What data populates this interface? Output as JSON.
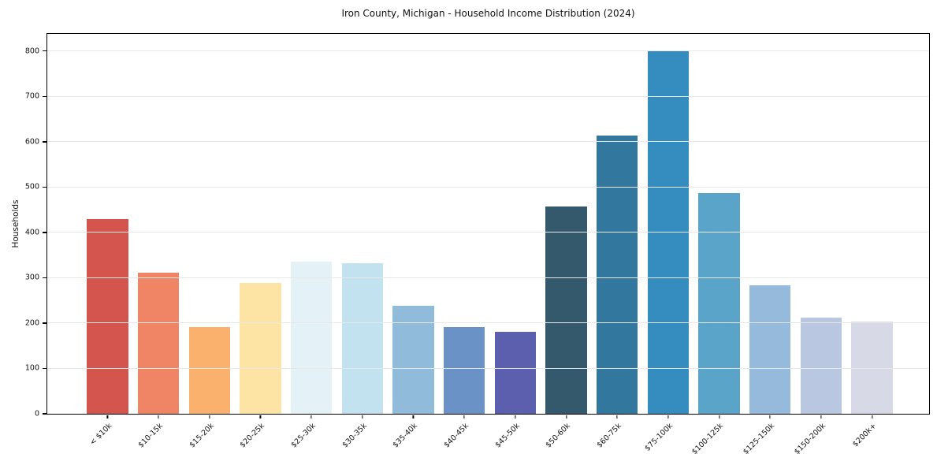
{
  "chart_data": {
    "type": "bar",
    "title": "Iron County, Michigan - Household Income Distribution (2024)",
    "xlabel": "",
    "ylabel": "Households",
    "categories": [
      "< $10k",
      "$10-15k",
      "$15-20k",
      "$20-25k",
      "$25-30k",
      "$30-35k",
      "$35-40k",
      "$40-45k",
      "$45-50k",
      "$50-60k",
      "$60-75k",
      "$75-100k",
      "$100-125k",
      "$125-150k",
      "$150-200k",
      "$200k+"
    ],
    "values": [
      430,
      311,
      191,
      288,
      335,
      332,
      238,
      191,
      181,
      457,
      613,
      800,
      487,
      284,
      213,
      204
    ],
    "bar_colors": [
      "#d4544e",
      "#f08566",
      "#f9b16d",
      "#fde3a4",
      "#e4f1f7",
      "#c3e2ef",
      "#90bbdb",
      "#6b92c6",
      "#5c5fae",
      "#35596c",
      "#32779d",
      "#348dbe",
      "#5ba4c9",
      "#96badb",
      "#b9c7e0",
      "#d8d9e7"
    ],
    "yticks": [
      0,
      100,
      200,
      300,
      400,
      500,
      600,
      700,
      800
    ],
    "ylim": [
      0,
      838
    ],
    "grid": "horizontal",
    "legend": "none",
    "gridline_color": "#e7e7e7",
    "spine_color": "#000000",
    "background_color": "#ffffff"
  }
}
